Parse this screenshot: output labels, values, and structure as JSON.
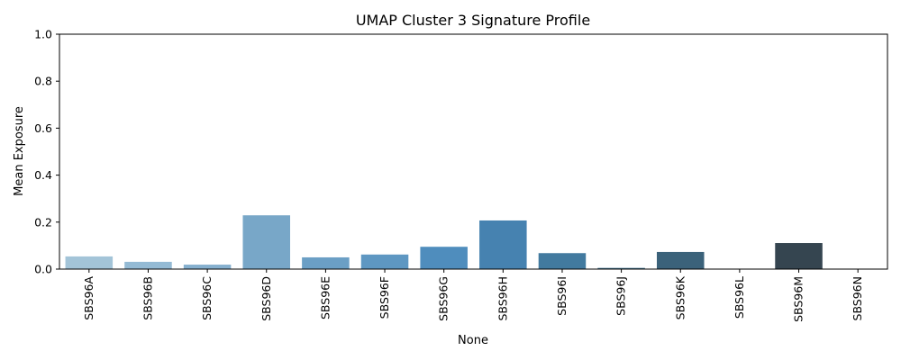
{
  "chart_data": {
    "type": "bar",
    "title": "UMAP Cluster 3 Signature Profile",
    "xlabel": "None",
    "ylabel": "Mean Exposure",
    "ylim": [
      0,
      1.0
    ],
    "yticks": [
      "0.0",
      "0.2",
      "0.4",
      "0.6",
      "0.8",
      "1.0"
    ],
    "grid": false,
    "categories": [
      "SBS96A",
      "SBS96B",
      "SBS96C",
      "SBS96D",
      "SBS96E",
      "SBS96F",
      "SBS96G",
      "SBS96H",
      "SBS96I",
      "SBS96J",
      "SBS96K",
      "SBS96L",
      "SBS96M",
      "SBS96N"
    ],
    "values": [
      0.054,
      0.031,
      0.019,
      0.229,
      0.05,
      0.062,
      0.095,
      0.207,
      0.068,
      0.005,
      0.073,
      0.0,
      0.111,
      0.0
    ],
    "colors": [
      "#a3c4d8",
      "#94bad4",
      "#86b0cf",
      "#78a7c8",
      "#6b9fc5",
      "#5e97c2",
      "#4f8dbd",
      "#4682b0",
      "#427a9f",
      "#3e6f8d",
      "#3b627a",
      "#385567",
      "#354550",
      "#2f3a44"
    ]
  }
}
